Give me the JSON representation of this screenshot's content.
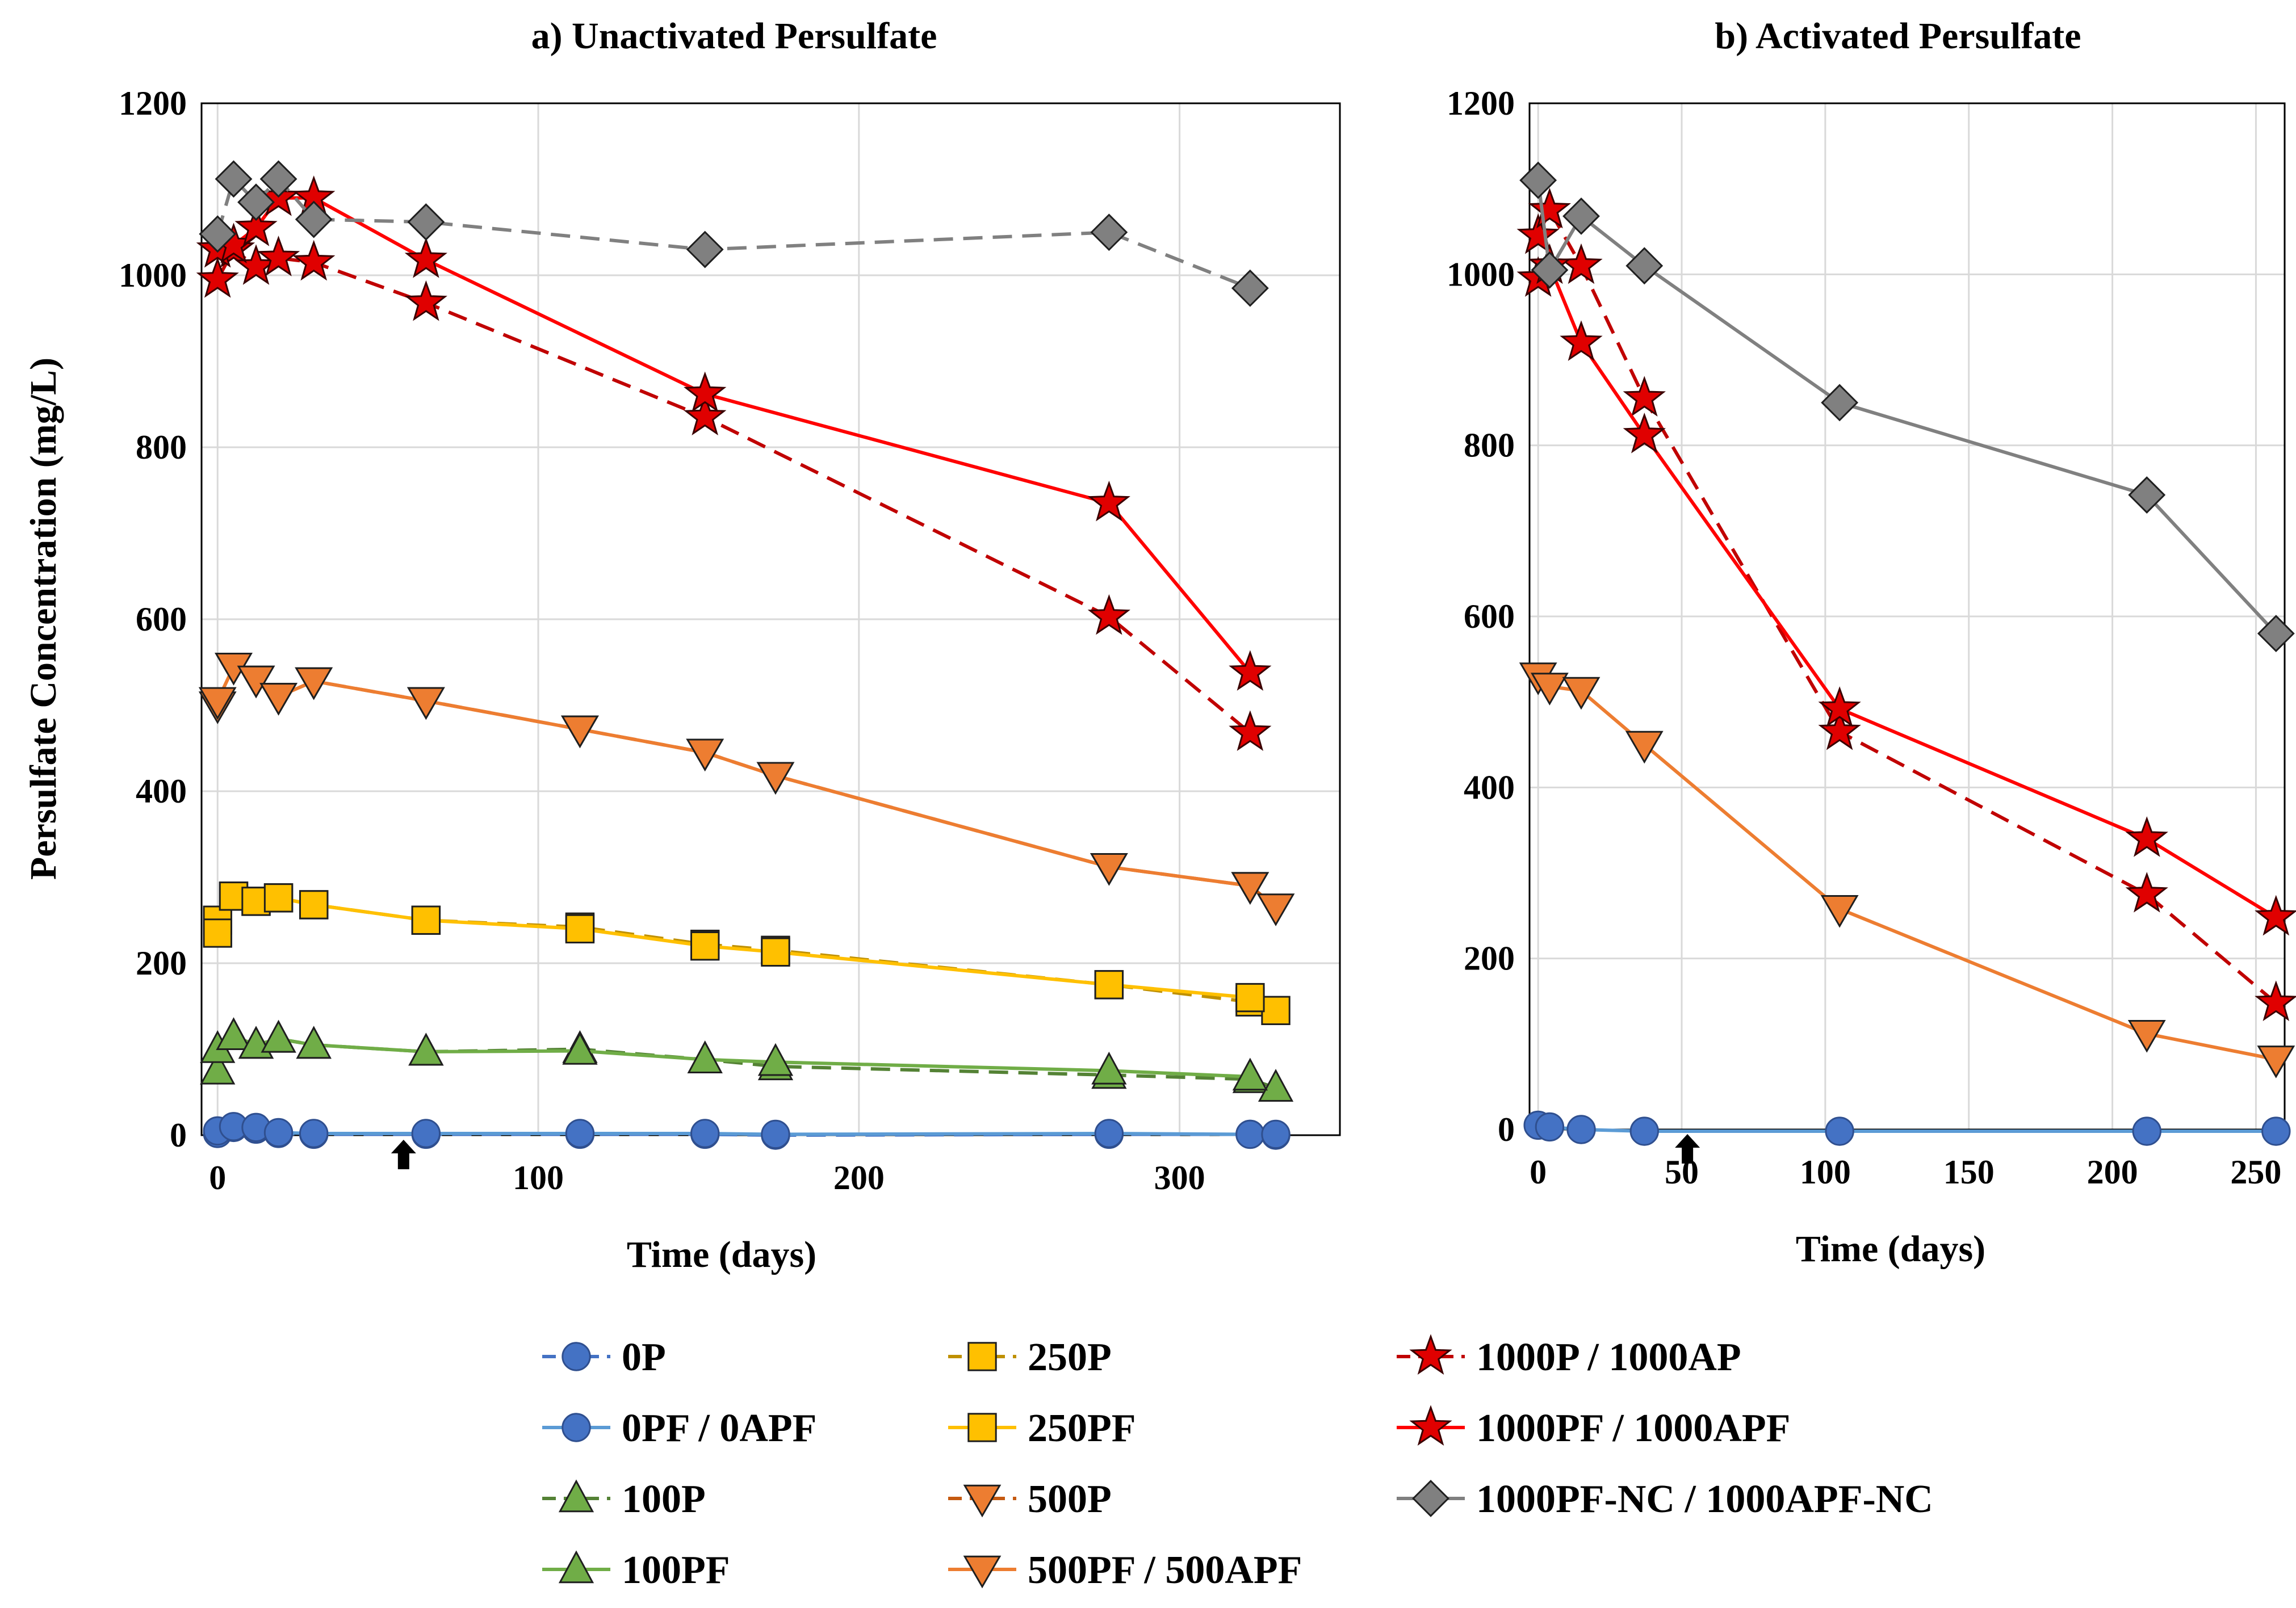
{
  "chart_data": [
    {
      "type": "line",
      "title": "a) Unactivated Persulfate",
      "xlabel": "Time (days)",
      "ylabel": "Persulfate Concentration (mg/L)",
      "xlim": [
        -5,
        350
      ],
      "ylim": [
        0,
        1200
      ],
      "xticks": [
        "0",
        "100",
        "200",
        "300"
      ],
      "yticks": [
        "0",
        "200",
        "400",
        "600",
        "800",
        "1000",
        "1200"
      ],
      "grid": "vertical and horizontal",
      "arrow_marker": {
        "x": 58
      },
      "series": [
        {
          "name": "0P",
          "color": "#4472c4",
          "dash": true,
          "marker": "circle",
          "x": [
            0,
            5,
            12,
            19,
            30,
            65,
            113,
            152,
            174,
            278,
            322,
            330
          ],
          "y": [
            2,
            9,
            7,
            2,
            1,
            1,
            1,
            1,
            0,
            1,
            1,
            0
          ]
        },
        {
          "name": "0PF / 0APF",
          "color": "#5b9bd5",
          "dash": false,
          "marker": "circle",
          "x": [
            0,
            5,
            12,
            19,
            30,
            65,
            113,
            152,
            174,
            278,
            322,
            330
          ],
          "y": [
            5,
            10,
            9,
            3,
            2,
            2,
            2,
            2,
            1,
            2,
            1,
            1
          ]
        },
        {
          "name": "100P",
          "color": "#548235",
          "dash": true,
          "marker": "triangle-up",
          "x": [
            0,
            5,
            12,
            19,
            30,
            65,
            113,
            152,
            174,
            278,
            322,
            330
          ],
          "y": [
            75,
            115,
            105,
            112,
            105,
            97,
            100,
            88,
            80,
            70,
            65,
            55
          ]
        },
        {
          "name": "100PF",
          "color": "#70ad47",
          "dash": false,
          "marker": "triangle-up",
          "x": [
            0,
            5,
            12,
            19,
            30,
            65,
            113,
            152,
            174,
            278,
            322
          ],
          "y": [
            100,
            115,
            105,
            112,
            105,
            97,
            98,
            88,
            85,
            75,
            68
          ]
        },
        {
          "name": "250P",
          "color": "#bf9000",
          "dash": true,
          "marker": "square",
          "x": [
            0,
            5,
            12,
            19,
            30,
            65,
            113,
            152,
            174,
            278,
            322,
            330
          ],
          "y": [
            250,
            278,
            272,
            276,
            268,
            250,
            242,
            222,
            215,
            175,
            155,
            145
          ]
        },
        {
          "name": "250PF",
          "color": "#ffc000",
          "dash": false,
          "marker": "square",
          "x": [
            0,
            5,
            12,
            19,
            30,
            65,
            113,
            152,
            174,
            278,
            322
          ],
          "y": [
            235,
            278,
            272,
            276,
            268,
            250,
            240,
            220,
            213,
            175,
            160
          ]
        },
        {
          "name": "500P",
          "color": "#c55a11",
          "dash": true,
          "marker": "triangle-down",
          "x": [
            0,
            5,
            12,
            19,
            30,
            65,
            113,
            152,
            174,
            278,
            322,
            330
          ],
          "y": [
            500,
            545,
            530,
            510,
            528,
            505,
            472,
            445,
            418,
            312,
            290,
            265
          ]
        },
        {
          "name": "500PF / 500APF",
          "color": "#ed7d31",
          "dash": false,
          "marker": "triangle-down",
          "x": [
            0,
            5,
            12,
            19,
            30,
            65,
            113,
            152,
            174,
            278,
            322
          ],
          "y": [
            505,
            545,
            530,
            510,
            528,
            505,
            472,
            445,
            418,
            312,
            290
          ]
        },
        {
          "name": "1000P / 1000AP",
          "color": "#c00000",
          "dash": true,
          "marker": "star",
          "x": [
            0,
            5,
            12,
            19,
            30,
            65,
            152,
            278,
            322
          ],
          "y": [
            995,
            1030,
            1010,
            1020,
            1015,
            968,
            835,
            603,
            468
          ]
        },
        {
          "name": "1000PF / 1000APF",
          "color": "#ff0000",
          "dash": false,
          "marker": "star",
          "x": [
            0,
            5,
            12,
            19,
            30,
            65,
            152,
            278,
            322
          ],
          "y": [
            1030,
            1035,
            1055,
            1090,
            1090,
            1018,
            862,
            735,
            538
          ]
        },
        {
          "name": "1000PF-NC / 1000APF-NC",
          "color": "#808080",
          "dash": true,
          "marker": "diamond",
          "x": [
            0,
            5,
            12,
            19,
            30,
            65,
            152,
            278,
            322
          ],
          "y": [
            1048,
            1112,
            1085,
            1112,
            1065,
            1062,
            1030,
            1050,
            985
          ]
        }
      ]
    },
    {
      "type": "line",
      "title": "b) Activated Persulfate",
      "xlabel": "Time (days)",
      "ylabel": "",
      "xlim": [
        -3,
        260
      ],
      "ylim": [
        0,
        1200
      ],
      "xticks": [
        "0",
        "50",
        "100",
        "150",
        "200",
        "250"
      ],
      "yticks": [
        "0",
        "200",
        "400",
        "600",
        "800",
        "1000",
        "1200"
      ],
      "grid": "vertical and horizontal",
      "arrow_marker": {
        "x": 52
      },
      "series": [
        {
          "name": "0PF / 0APF",
          "color": "#5b9bd5",
          "dash": false,
          "marker": "circle",
          "x": [
            0,
            4,
            15,
            37,
            105,
            212,
            257
          ],
          "y": [
            5,
            3,
            0,
            -2,
            -2,
            -2,
            -2
          ]
        },
        {
          "name": "500PF / 500APF",
          "color": "#ed7d31",
          "dash": false,
          "marker": "triangle-down",
          "x": [
            0,
            4,
            15,
            37,
            105,
            212,
            257
          ],
          "y": [
            530,
            518,
            513,
            450,
            258,
            112,
            82
          ]
        },
        {
          "name": "1000P / 1000AP",
          "color": "#c00000",
          "dash": true,
          "marker": "star",
          "x": [
            0,
            4,
            15,
            37,
            105,
            212,
            257
          ],
          "y": [
            1045,
            1075,
            1010,
            855,
            465,
            275,
            148
          ]
        },
        {
          "name": "1000PF / 1000APF",
          "color": "#ff0000",
          "dash": false,
          "marker": "star",
          "x": [
            0,
            4,
            15,
            37,
            105,
            212,
            257
          ],
          "y": [
            995,
            1010,
            920,
            812,
            492,
            340,
            248
          ]
        },
        {
          "name": "1000PF-NC / 1000APF-NC",
          "color": "#808080",
          "dash": false,
          "marker": "diamond",
          "x": [
            0,
            4,
            15,
            37,
            105,
            212,
            257
          ],
          "y": [
            1110,
            1005,
            1068,
            1010,
            850,
            742,
            580
          ]
        }
      ]
    }
  ],
  "legend": {
    "placement": "bottom",
    "entries": [
      {
        "label": "0P",
        "color": "#4472c4",
        "dash": true,
        "marker": "circle"
      },
      {
        "label": "250P",
        "color": "#bf9000",
        "dash": true,
        "marker": "square"
      },
      {
        "label": "1000P / 1000AP",
        "color": "#c00000",
        "dash": true,
        "marker": "star"
      },
      {
        "label": "0PF / 0APF",
        "color": "#5b9bd5",
        "dash": false,
        "marker": "circle"
      },
      {
        "label": "250PF",
        "color": "#ffc000",
        "dash": false,
        "marker": "square"
      },
      {
        "label": "1000PF / 1000APF",
        "color": "#ff0000",
        "dash": false,
        "marker": "star"
      },
      {
        "label": "100P",
        "color": "#548235",
        "dash": true,
        "marker": "triangle-up"
      },
      {
        "label": "500P",
        "color": "#c55a11",
        "dash": true,
        "marker": "triangle-down"
      },
      {
        "label": "1000PF-NC / 1000APF-NC",
        "color": "#808080",
        "dash": false,
        "marker": "diamond"
      },
      {
        "label": "100PF",
        "color": "#70ad47",
        "dash": false,
        "marker": "triangle-up"
      },
      {
        "label": "500PF / 500APF",
        "color": "#ed7d31",
        "dash": false,
        "marker": "triangle-down"
      }
    ]
  },
  "marker_fills": {
    "circle": "#4472c4",
    "circle-light": "#4472c4",
    "triangle-up": "#70ad47",
    "square": "#ffc000",
    "triangle-down": "#ed7d31",
    "star": "#e00000",
    "diamond": "#808080"
  }
}
